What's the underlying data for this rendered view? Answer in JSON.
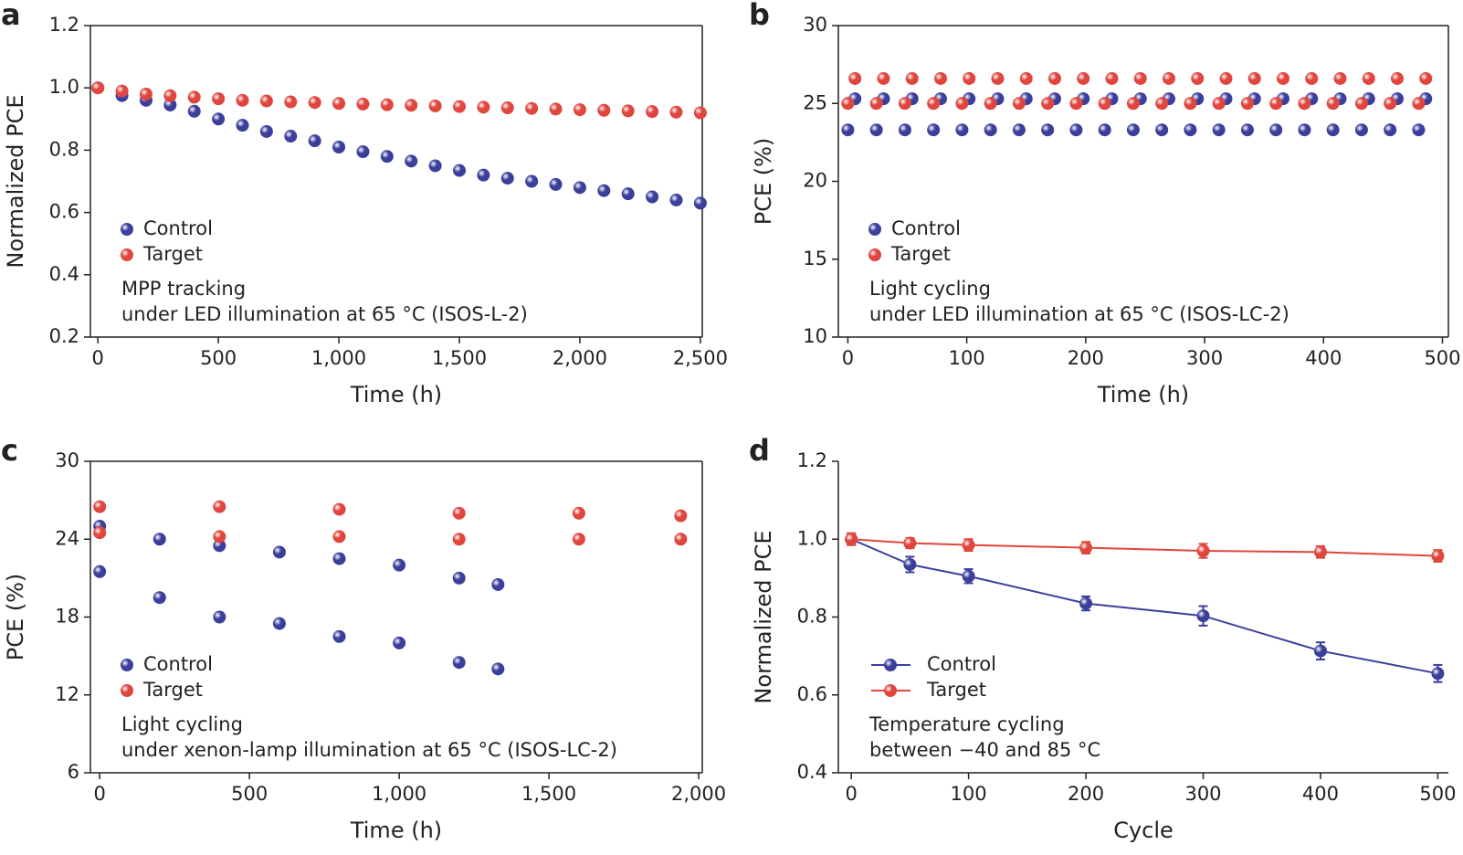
{
  "chart_data": [
    {
      "type": "scatter",
      "panel": "a",
      "xlabel": "Time (h)",
      "ylabel": "Normalized PCE",
      "box": true,
      "xlim": [
        -31,
        2508
      ],
      "ylim": [
        0.2,
        1.2
      ],
      "xticks": [
        0,
        500,
        {
          "value": 1000,
          "label": "1,000"
        },
        {
          "value": 1500,
          "label": "1,500"
        },
        {
          "value": 2000,
          "label": "2,000"
        },
        {
          "value": 2500,
          "label": "2,500"
        }
      ],
      "yticks": [
        0.2,
        0.4,
        0.6,
        0.8,
        {
          "value": 1.0,
          "label": "1.0"
        },
        1.2
      ],
      "legend": "lower left",
      "annotations": [
        "MPP tracking",
        "under LED illumination at 65 °C (ISOS-L-2)"
      ],
      "series": [
        {
          "name": "Control",
          "color": "#3b3f9c",
          "x": [
            0,
            100,
            200,
            300,
            400,
            500,
            600,
            700,
            800,
            900,
            1000,
            1100,
            1200,
            1300,
            1400,
            1500,
            1600,
            1700,
            1800,
            1900,
            2000,
            2100,
            2200,
            2300,
            2400,
            2500
          ],
          "values": [
            1.0,
            0.975,
            0.96,
            0.945,
            0.925,
            0.9,
            0.88,
            0.86,
            0.845,
            0.83,
            0.81,
            0.795,
            0.78,
            0.765,
            0.75,
            0.735,
            0.72,
            0.71,
            0.7,
            0.69,
            0.68,
            0.67,
            0.66,
            0.65,
            0.64,
            0.63
          ]
        },
        {
          "name": "Target",
          "color": "#e0453e",
          "x": [
            0,
            100,
            200,
            300,
            400,
            500,
            600,
            700,
            800,
            900,
            1000,
            1100,
            1200,
            1300,
            1400,
            1500,
            1600,
            1700,
            1800,
            1900,
            2000,
            2100,
            2200,
            2300,
            2400,
            2500
          ],
          "values": [
            1.0,
            0.99,
            0.98,
            0.975,
            0.97,
            0.965,
            0.96,
            0.958,
            0.955,
            0.953,
            0.95,
            0.948,
            0.946,
            0.944,
            0.942,
            0.94,
            0.938,
            0.936,
            0.934,
            0.932,
            0.93,
            0.928,
            0.926,
            0.924,
            0.922,
            0.92
          ]
        }
      ]
    },
    {
      "type": "scatter",
      "panel": "b",
      "xlabel": "Time (h)",
      "ylabel": "PCE (%)",
      "box": true,
      "xlim": [
        -8,
        505
      ],
      "ylim": [
        10,
        30
      ],
      "xticks": [
        0,
        100,
        200,
        300,
        400,
        500
      ],
      "yticks": [
        10,
        15,
        20,
        25,
        30
      ],
      "legend": "lower left",
      "annotations": [
        "Light cycling",
        "under LED illumination at 65 °C (ISOS-LC-2)"
      ],
      "series": [
        {
          "name": "Control",
          "color": "#3b3f9c",
          "x": [
            0,
            6,
            24,
            30,
            48,
            54,
            72,
            78,
            96,
            102,
            120,
            126,
            144,
            150,
            168,
            174,
            192,
            198,
            216,
            222,
            240,
            246,
            264,
            270,
            288,
            294,
            312,
            318,
            336,
            342,
            360,
            366,
            384,
            390,
            408,
            414,
            432,
            438,
            456,
            462,
            480,
            486
          ],
          "values": [
            23.3,
            25.3,
            23.3,
            25.3,
            23.3,
            25.3,
            23.3,
            25.3,
            23.3,
            25.3,
            23.3,
            25.3,
            23.3,
            25.3,
            23.3,
            25.3,
            23.3,
            25.3,
            23.3,
            25.3,
            23.3,
            25.3,
            23.3,
            25.3,
            23.3,
            25.3,
            23.3,
            25.3,
            23.3,
            25.3,
            23.3,
            25.3,
            23.3,
            25.3,
            23.3,
            25.3,
            23.3,
            25.3,
            23.3,
            25.3,
            23.3,
            25.3
          ]
        },
        {
          "name": "Target",
          "color": "#e0453e",
          "x": [
            0,
            6,
            24,
            30,
            48,
            54,
            72,
            78,
            96,
            102,
            120,
            126,
            144,
            150,
            168,
            174,
            192,
            198,
            216,
            222,
            240,
            246,
            264,
            270,
            288,
            294,
            312,
            318,
            336,
            342,
            360,
            366,
            384,
            390,
            408,
            414,
            432,
            438,
            456,
            462,
            480,
            486
          ],
          "values": [
            25.0,
            26.6,
            25.0,
            26.6,
            25.0,
            26.6,
            25.0,
            26.6,
            25.0,
            26.6,
            25.0,
            26.6,
            25.0,
            26.6,
            25.0,
            26.6,
            25.0,
            26.6,
            25.0,
            26.6,
            25.0,
            26.6,
            25.0,
            26.6,
            25.0,
            26.6,
            25.0,
            26.6,
            25.0,
            26.6,
            25.0,
            26.6,
            25.0,
            26.6,
            25.0,
            26.6,
            25.0,
            26.6,
            25.0,
            26.6,
            25.0,
            26.6
          ]
        }
      ]
    },
    {
      "type": "scatter",
      "panel": "c",
      "xlabel": "Time (h)",
      "ylabel": "PCE (%)",
      "box": true,
      "xlim": [
        -31,
        2012
      ],
      "ylim": [
        6,
        30
      ],
      "xticks": [
        0,
        500,
        {
          "value": 1000,
          "label": "1,000"
        },
        {
          "value": 1500,
          "label": "1,500"
        },
        {
          "value": 2000,
          "label": "2,000"
        }
      ],
      "yticks": [
        6,
        12,
        18,
        24,
        30
      ],
      "legend": "lower left",
      "annotations": [
        "Light cycling",
        "under xenon-lamp illumination at 65 °C (ISOS-LC-2)"
      ],
      "series": [
        {
          "name": "Control",
          "color": "#3b3f9c",
          "x": [
            0,
            0,
            200,
            200,
            400,
            400,
            600,
            600,
            800,
            800,
            1000,
            1000,
            1200,
            1200,
            1330,
            1330
          ],
          "values": [
            25,
            21.5,
            24,
            19.5,
            23.5,
            18,
            23,
            17.5,
            22.5,
            16.5,
            22,
            16,
            21,
            14.5,
            20.5,
            14
          ]
        },
        {
          "name": "Target",
          "color": "#e0453e",
          "x": [
            0,
            0,
            400,
            400,
            800,
            800,
            1200,
            1200,
            1600,
            1600,
            1940,
            1940
          ],
          "values": [
            26.5,
            24.5,
            26.5,
            24.2,
            26.3,
            24.2,
            26,
            24,
            26,
            24,
            25.8,
            24
          ]
        }
      ]
    },
    {
      "type": "line",
      "panel": "d",
      "xlabel": "Cycle",
      "ylabel": "Normalized PCE",
      "box": false,
      "xlim": [
        -11,
        509
      ],
      "ylim": [
        0.4,
        1.2
      ],
      "xticks": [
        0,
        100,
        200,
        300,
        400,
        500
      ],
      "yticks": [
        0.4,
        0.6,
        0.8,
        {
          "value": 1.0,
          "label": "1.0"
        },
        1.2
      ],
      "legend": "lower left",
      "annotations": [
        "Temperature cycling",
        "between −40 and 85 °C"
      ],
      "series": [
        {
          "name": "Control",
          "color": "#3b3f9c",
          "x": [
            0,
            50,
            100,
            200,
            300,
            400,
            500
          ],
          "values": [
            1.0,
            0.935,
            0.905,
            0.835,
            0.803,
            0.713,
            0.655
          ],
          "errors": [
            0.015,
            0.02,
            0.018,
            0.018,
            0.025,
            0.022,
            0.022
          ]
        },
        {
          "name": "Target",
          "color": "#e0453e",
          "x": [
            0,
            50,
            100,
            200,
            300,
            400,
            500
          ],
          "values": [
            1.0,
            0.99,
            0.985,
            0.978,
            0.97,
            0.967,
            0.957
          ],
          "errors": [
            0.015,
            0.013,
            0.015,
            0.015,
            0.018,
            0.015,
            0.015
          ]
        }
      ]
    }
  ]
}
